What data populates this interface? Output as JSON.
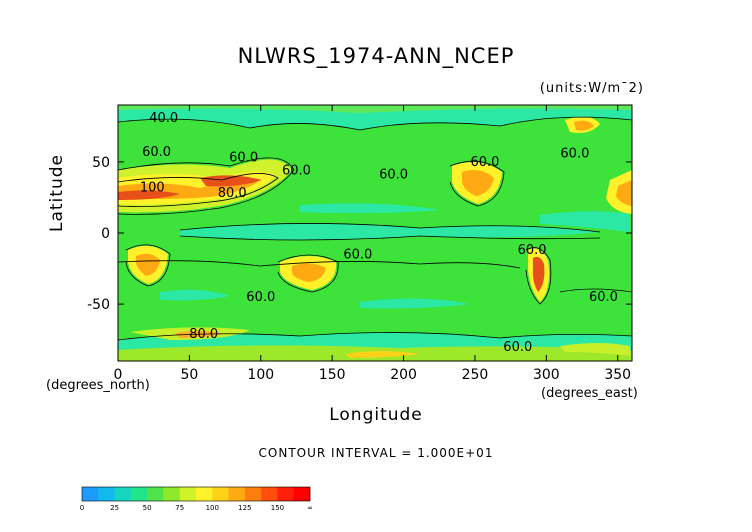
{
  "chart_data": {
    "type": "heatmap",
    "title": "NLWRS_1974-ANN_NCEP",
    "units_note": "(units:W/m^2)",
    "xlabel": "Longitude",
    "ylabel": "Latitude",
    "x_unit_note": "(degrees_east)",
    "y_unit_note": "(degrees_north)",
    "xlim": [
      0,
      360
    ],
    "ylim": [
      -90,
      90
    ],
    "xticks": [
      0,
      50,
      100,
      150,
      200,
      250,
      300,
      350
    ],
    "yticks": [
      50,
      0,
      -50
    ],
    "contour_interval_text": "CONTOUR INTERVAL = 1.000E+01",
    "contour_labels": [
      "40.0",
      "60.0",
      "60.0",
      "60.0",
      "60.0",
      "60.0",
      "60.0",
      "60.0",
      "60.0",
      "60.0",
      "60.0",
      "80.0",
      "100",
      "80.0",
      "60.0"
    ],
    "colorbar": {
      "tick_labels": [
        "0",
        "25",
        "50",
        "75",
        "100",
        "125",
        "150",
        "∞"
      ],
      "colors": [
        "#1e9bff",
        "#13b8ee",
        "#14d6c0",
        "#22e58a",
        "#4fe34a",
        "#8ee82a",
        "#cff22a",
        "#fff22a",
        "#ffd21a",
        "#ffaa12",
        "#ff7e10",
        "#ff4d0d",
        "#ff1f0b",
        "#ff0000"
      ]
    },
    "colors": {
      "background_mid": "#3de33a",
      "low": "#2ce8a5",
      "high_yellow": "#f6f428",
      "high_orange": "#ff9f10",
      "high_red": "#e8501a"
    }
  }
}
